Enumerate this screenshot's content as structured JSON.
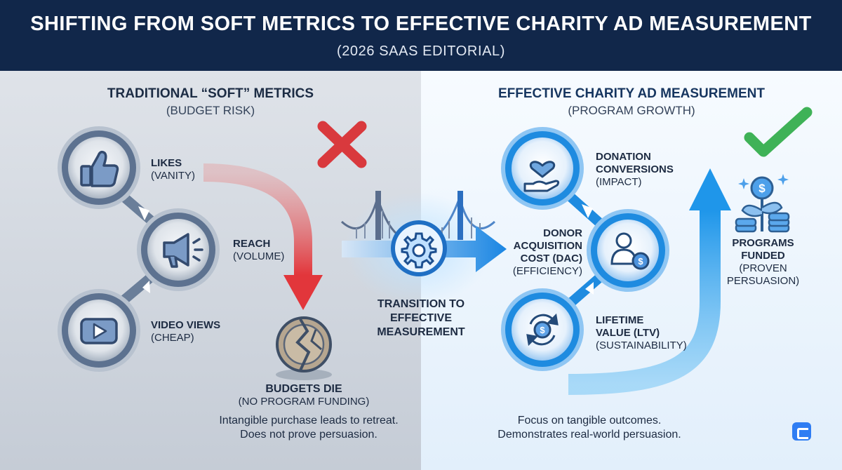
{
  "header": {
    "title": "SHIFTING FROM SOFT METRICS TO EFFECTIVE CHARITY AD MEASUREMENT",
    "subtitle": "(2026 SAAS EDITORIAL)"
  },
  "left": {
    "title": "TRADITIONAL “SOFT” METRICS",
    "subtitle": "(BUDGET RISK)",
    "items": [
      {
        "name": "LIKES",
        "note": "(VANITY)",
        "icon": "thumbs-up-icon"
      },
      {
        "name": "REACH",
        "note": "(VOLUME)",
        "icon": "megaphone-icon"
      },
      {
        "name": "VIDEO VIEWS",
        "note": "(CHEAP)",
        "icon": "play-icon"
      }
    ],
    "outcome": {
      "name": "BUDGETS DIE",
      "note": "(NO PROGRAM FUNDING)",
      "icon": "broken-coin-icon"
    },
    "caption_line1": "Intangible purchase leads to retreat.",
    "caption_line2": "Does not prove persuasion.",
    "status_icon": "red-x-icon",
    "colors": {
      "arrow": "#e0353b",
      "nodes": "#5d7290"
    }
  },
  "bridge": {
    "label_line1": "TRANSITION TO",
    "label_line2": "EFFECTIVE",
    "label_line3": "MEASUREMENT",
    "icon": "bridge-gear-icon"
  },
  "right": {
    "title": "EFFECTIVE CHARITY AD MEASUREMENT",
    "subtitle": "(PROGRAM GROWTH)",
    "items": [
      {
        "name_line1": "DONATION",
        "name_line2": "CONVERSIONS",
        "note": "(IMPACT)",
        "icon": "heart-hand-icon"
      },
      {
        "name_line1": "DONOR",
        "name_line2": "ACQUISITION",
        "name_line3": "COST (DAC)",
        "note": "(EFFICIENCY)",
        "icon": "donor-dollar-icon"
      },
      {
        "name_line1": "LIFETIME",
        "name_line2": "VALUE (LTV)",
        "note": "(SUSTAINABILITY)",
        "icon": "recurring-dollar-icon"
      }
    ],
    "outcome": {
      "name_line1": "PROGRAMS",
      "name_line2": "FUNDED",
      "note_line1": "(PROVEN",
      "note_line2": "PERSUASION)",
      "icon": "money-plant-icon"
    },
    "caption_line1": "Focus on tangible outcomes.",
    "caption_line2": "Demonstrates real-world persuasion.",
    "status_icon": "green-check-icon",
    "colors": {
      "arrow": "#35a8ee",
      "nodes": "#1e8be0",
      "title": "#16355f"
    }
  },
  "brand_icon": "app-logo-icon"
}
